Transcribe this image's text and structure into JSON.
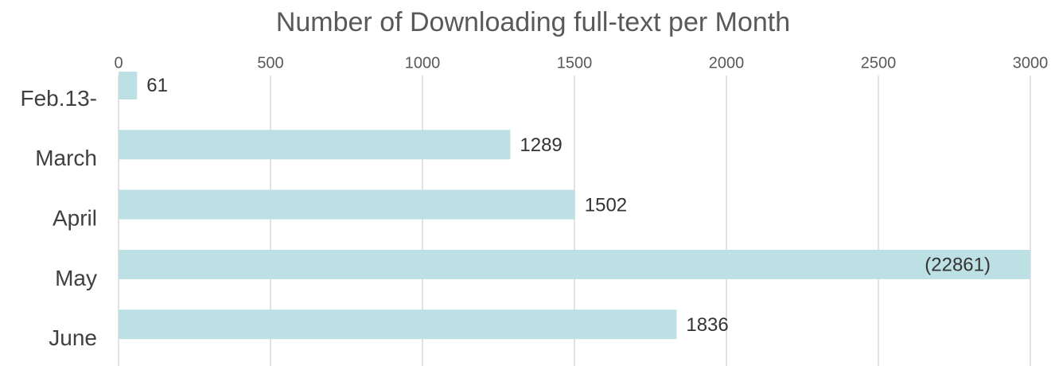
{
  "chart_data": {
    "type": "bar",
    "orientation": "horizontal",
    "title": "Number of Downloading full-text per Month",
    "categories": [
      "Feb.13-",
      "March",
      "April",
      "May",
      "June"
    ],
    "values": [
      61,
      1289,
      1502,
      22861,
      1836
    ],
    "value_labels": [
      "61",
      "1289",
      "1502",
      "(22861)",
      "1836"
    ],
    "color": "#bce0e3",
    "xlim": [
      0,
      3000
    ],
    "xticks": [
      0,
      500,
      1000,
      1500,
      2000,
      2500,
      3000
    ],
    "grid": true
  }
}
